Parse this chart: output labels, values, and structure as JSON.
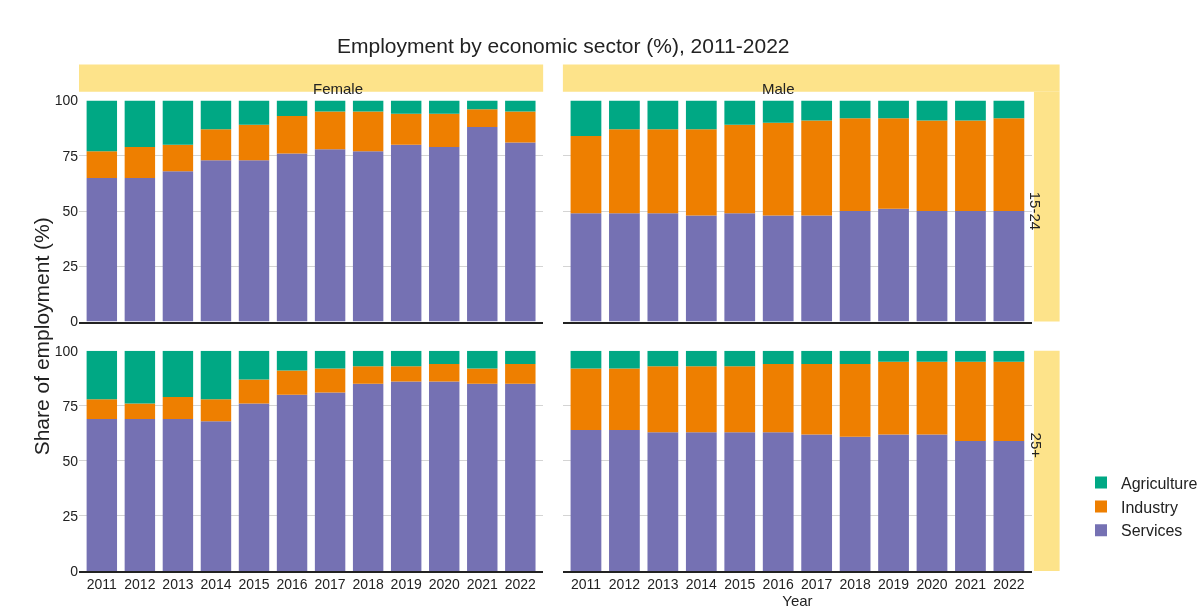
{
  "chart_data": [
    {
      "type": "bar",
      "stacked": true,
      "title": "Female",
      "annotations": [
        "Employment by economic sector (%), 2011-2022"
      ],
      "ylabel": "Share of employment (%)",
      "categories": [
        "2011",
        "2012",
        "2013",
        "2014",
        "2015",
        "2016",
        "2017",
        "2018",
        "2019",
        "2020",
        "2021",
        "2022"
      ],
      "ylim": [
        0,
        100
      ],
      "yticks": [
        0,
        25,
        50,
        75,
        100
      ],
      "grid": "y",
      "tick_labels": "y",
      "legend": "right",
      "series": [
        {
          "name": "Services",
          "color": "#7571b3",
          "values": [
            65,
            65,
            68,
            73,
            73,
            76,
            78,
            77,
            80,
            79,
            88,
            81
          ]
        },
        {
          "name": "Industry",
          "color": "#ee7f00",
          "values": [
            12,
            14,
            12,
            14,
            16,
            17,
            17,
            18,
            14,
            15,
            8,
            14
          ]
        },
        {
          "name": "Agriculture",
          "color": "#00a884",
          "values": [
            23,
            21,
            20,
            13,
            11,
            7,
            5,
            5,
            6,
            6,
            4,
            5
          ]
        }
      ]
    },
    {
      "type": "bar",
      "stacked": true,
      "title": "Male",
      "subtitle": "15-24",
      "categories": [
        "2011",
        "2012",
        "2013",
        "2014",
        "2015",
        "2016",
        "2017",
        "2018",
        "2019",
        "2020",
        "2021",
        "2022"
      ],
      "ylim": [
        0,
        100
      ],
      "yticks": [
        0,
        25,
        50,
        75,
        100
      ],
      "grid": "y",
      "tick_labels": false,
      "series": [
        {
          "color": "#7571b3",
          "values": [
            49,
            49,
            49,
            48,
            49,
            48,
            48,
            50,
            51,
            50,
            50,
            50
          ]
        },
        {
          "color": "#ee7f00",
          "values": [
            35,
            38,
            38,
            39,
            40,
            42,
            43,
            42,
            41,
            41,
            41,
            42
          ]
        },
        {
          "color": "#00a884",
          "values": [
            16,
            13,
            13,
            13,
            11,
            10,
            9,
            8,
            8,
            9,
            9,
            8
          ]
        }
      ]
    },
    {
      "type": "bar",
      "stacked": true,
      "categories": [
        "2011",
        "2012",
        "2013",
        "2014",
        "2015",
        "2016",
        "2017",
        "2018",
        "2019",
        "2020",
        "2021",
        "2022"
      ],
      "ylim": [
        0,
        100
      ],
      "yticks": [
        0,
        25,
        50,
        75,
        100
      ],
      "grid": "y",
      "series": [
        {
          "color": "#7571b3",
          "values": [
            69,
            69,
            69,
            68,
            76,
            80,
            81,
            85,
            86,
            86,
            85,
            85
          ]
        },
        {
          "color": "#ee7f00",
          "values": [
            9,
            7,
            10,
            10,
            11,
            11,
            11,
            8,
            7,
            8,
            7,
            9
          ]
        },
        {
          "color": "#00a884",
          "values": [
            22,
            24,
            21,
            22,
            13,
            9,
            8,
            7,
            7,
            6,
            8,
            6
          ]
        }
      ]
    },
    {
      "type": "bar",
      "stacked": true,
      "subtitle": "25+",
      "xlabel": "Year",
      "categories": [
        "2011",
        "2012",
        "2013",
        "2014",
        "2015",
        "2016",
        "2017",
        "2018",
        "2019",
        "2020",
        "2021",
        "2022"
      ],
      "ylim": [
        0,
        100
      ],
      "yticks": [
        0,
        25,
        50,
        75,
        100
      ],
      "grid": "y",
      "tick_labels": "x",
      "series": [
        {
          "color": "#7571b3",
          "values": [
            64,
            64,
            63,
            63,
            63,
            63,
            62,
            61,
            62,
            62,
            59,
            59
          ]
        },
        {
          "color": "#ee7f00",
          "values": [
            28,
            28,
            30,
            30,
            30,
            31,
            32,
            33,
            33,
            33,
            36,
            36
          ]
        },
        {
          "color": "#00a884",
          "values": [
            8,
            8,
            7,
            7,
            7,
            6,
            6,
            6,
            5,
            5,
            5,
            5
          ]
        }
      ]
    }
  ]
}
